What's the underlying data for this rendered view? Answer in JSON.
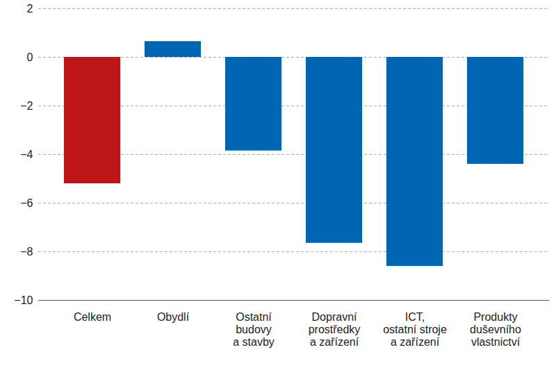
{
  "chart_data": {
    "type": "bar",
    "categories": [
      "Celkem",
      "Obydlí",
      "Ostatní\nbudovy\na stavby",
      "Dopravní\nprostředky\na zařízení",
      "ICT,\nostatní stroje\na zařízení",
      "Produkty\nduševního\nvlastnictví"
    ],
    "values": [
      -5.2,
      0.65,
      -3.85,
      -7.65,
      -8.6,
      -4.4
    ],
    "colors": [
      "#be1516",
      "#0066b3",
      "#0066b3",
      "#0066b3",
      "#0066b3",
      "#0066b3"
    ],
    "ylim": [
      -10,
      2
    ],
    "yticks": [
      {
        "value": -10,
        "label": "−10"
      },
      {
        "value": -8,
        "label": "−8"
      },
      {
        "value": -6,
        "label": "−6"
      },
      {
        "value": -4,
        "label": "−4"
      },
      {
        "value": -2,
        "label": "−2"
      },
      0,
      2
    ],
    "grid": true
  }
}
